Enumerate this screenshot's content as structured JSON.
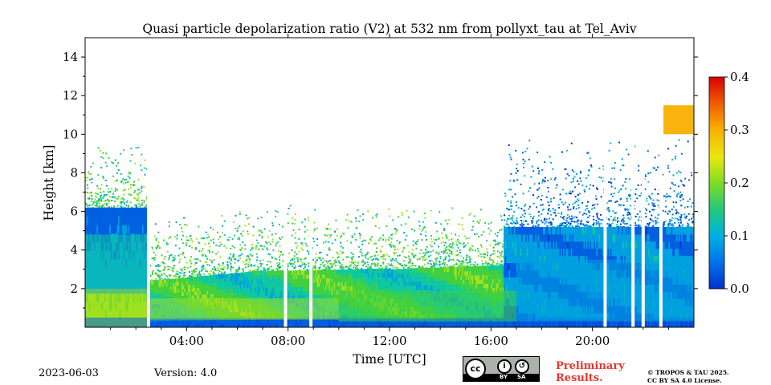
{
  "chart_data": {
    "type": "heatmap",
    "title": "Quasi particle depolarization ratio (V2) at 532 nm from pollyxt_tau at Tel_Aviv",
    "xlabel": "Time [UTC]",
    "ylabel": "Height [km]",
    "x_range_hours": [
      0,
      24
    ],
    "x_ticks": [
      {
        "hour": 4,
        "label": "04:00"
      },
      {
        "hour": 8,
        "label": "08:00"
      },
      {
        "hour": 12,
        "label": "12:00"
      },
      {
        "hour": 16,
        "label": "16:00"
      },
      {
        "hour": 20,
        "label": "20:00"
      }
    ],
    "ylim": [
      0,
      15
    ],
    "y_ticks": [
      2,
      4,
      6,
      8,
      10,
      12,
      14
    ],
    "colorbar": {
      "range": [
        0.0,
        0.4
      ],
      "ticks": [
        "0.0",
        "0.1",
        "0.2",
        "0.3",
        "0.4"
      ]
    },
    "colormap": [
      "#0030d0",
      "#0060e0",
      "#00a0e0",
      "#10c8a0",
      "#40d040",
      "#a0e020",
      "#e8e810",
      "#f8b000",
      "#f06000",
      "#d80000"
    ],
    "gap_hours": [
      2.5,
      7.9,
      8.9,
      20.5,
      21.6,
      22.0,
      22.7
    ],
    "layers": [
      {
        "name": "surface",
        "t0": 0,
        "t1": 24,
        "h0": 0.0,
        "h1": 0.5,
        "value": 0.05
      },
      {
        "name": "residual-layer",
        "t0": 0,
        "t1": 2.5,
        "h0": 0.5,
        "h1": 2.0,
        "value": 0.21
      },
      {
        "name": "residual-top",
        "t0": 0,
        "t1": 2.5,
        "h0": 2.0,
        "h1": 4.8,
        "value": 0.12
      },
      {
        "name": "morning-aerosol",
        "t0": 2.5,
        "t1": 10,
        "h0": 0.4,
        "h1": 1.5,
        "value": 0.2
      },
      {
        "name": "afternoon-aerosol",
        "t0": 10,
        "t1": 17,
        "h0": 0.3,
        "h1": 1.9,
        "value": 0.19
      },
      {
        "name": "evening-aerosol",
        "t0": 17,
        "t1": 24,
        "h0": 0.3,
        "h1": 3.5,
        "value": 0.09
      },
      {
        "name": "cirrus",
        "t0": 22.8,
        "t1": 24,
        "h0": 10.0,
        "h1": 11.5,
        "value": 0.3
      }
    ]
  },
  "footer": {
    "date": "2023-06-03",
    "version": "Version: 4.0",
    "preliminary_line1": "Preliminary",
    "preliminary_line2": "Results.",
    "copyright_line1": "© TROPOS & TAU 2025.",
    "copyright_line2": "CC BY SA 4.0 License.",
    "license_badge": {
      "main": "cc",
      "by": "BY",
      "sa": "SA"
    }
  }
}
